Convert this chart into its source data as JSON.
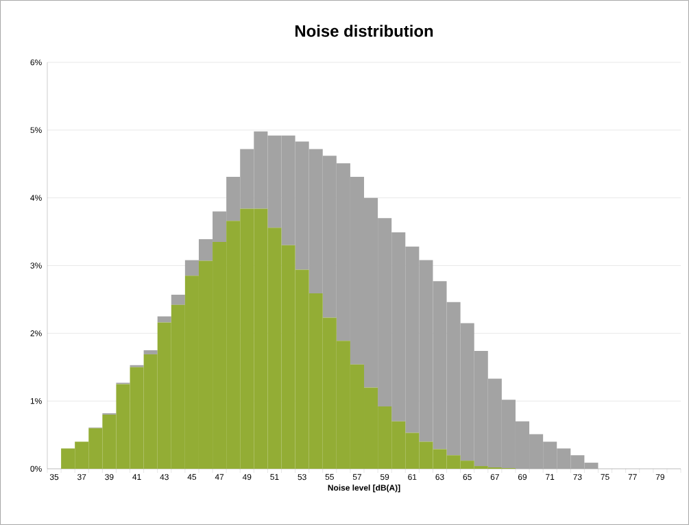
{
  "chart_data": {
    "type": "bar",
    "stacked": true,
    "title": "Noise distribution",
    "xlabel": "Noise level [dB(A)]",
    "categories": [
      "35",
      null,
      "37",
      null,
      "39",
      null,
      "41",
      null,
      "43",
      null,
      "45",
      null,
      "47",
      null,
      "49",
      null,
      "51",
      null,
      "53",
      null,
      "55",
      null,
      "57",
      null,
      "59",
      null,
      "61",
      null,
      "63",
      null,
      "65",
      null,
      "67",
      null,
      "69",
      null,
      "71",
      null,
      "73",
      null,
      "75",
      null,
      "77",
      null,
      "79",
      null
    ],
    "series": [
      {
        "color": "#93ad35",
        "values": [
          0,
          0.3,
          0.4,
          0.6,
          0.8,
          1.25,
          1.5,
          1.69,
          2.16,
          2.42,
          2.85,
          3.07,
          3.35,
          3.66,
          3.84,
          3.84,
          3.56,
          3.3,
          2.94,
          2.59,
          2.23,
          1.89,
          1.54,
          1.2,
          0.92,
          0.7,
          0.53,
          0.4,
          0.29,
          0.2,
          0.12,
          0.04,
          0.02,
          0.01,
          0,
          0,
          0,
          0,
          0,
          0,
          0,
          0,
          0,
          0,
          0,
          0
        ]
      },
      {
        "color": "#a3a3a3",
        "values": [
          0,
          0,
          0,
          0.01,
          0.02,
          0.02,
          0.03,
          0.06,
          0.09,
          0.15,
          0.23,
          0.32,
          0.45,
          0.65,
          0.88,
          1.14,
          1.36,
          1.62,
          1.89,
          2.13,
          2.39,
          2.62,
          2.77,
          2.8,
          2.78,
          2.79,
          2.75,
          2.68,
          2.48,
          2.26,
          2.03,
          1.7,
          1.31,
          1.01,
          0.7,
          0.51,
          0.4,
          0.3,
          0.2,
          0.09,
          0,
          0,
          0,
          0,
          0,
          0
        ]
      }
    ],
    "ylim": [
      0,
      6
    ],
    "yticks": [
      {
        "value": 0,
        "label": "0%"
      },
      {
        "value": 1,
        "label": "1%"
      },
      {
        "value": 2,
        "label": "2%"
      },
      {
        "value": 3,
        "label": "3%"
      },
      {
        "value": 4,
        "label": "4%"
      },
      {
        "value": 5,
        "label": "5%"
      },
      {
        "value": 6,
        "label": "6%"
      }
    ],
    "grid": "y"
  }
}
